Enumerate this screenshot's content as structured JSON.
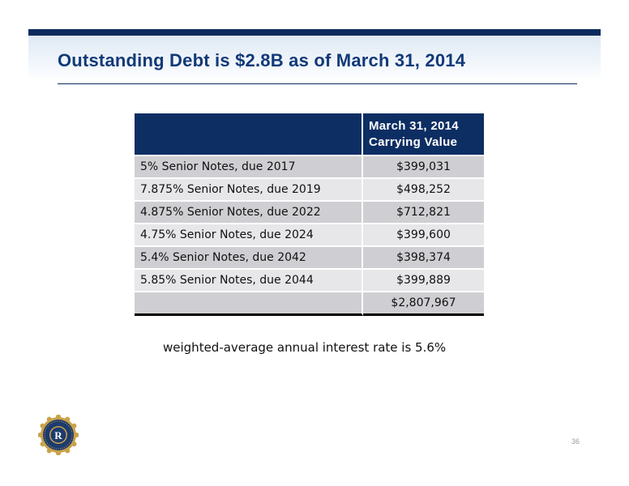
{
  "slide": {
    "title": "Outstanding Debt is $2.8B as of March 31, 2014",
    "page_number": "36"
  },
  "table": {
    "header": {
      "line1": "March 31, 2014",
      "line2": "Carrying Value"
    },
    "rows": [
      {
        "description": "5% Senior Notes, due 2017",
        "value": "$399,031"
      },
      {
        "description": "7.875% Senior Notes, due 2019",
        "value": "$498,252"
      },
      {
        "description": "4.875% Senior Notes, due 2022",
        "value": "$712,821"
      },
      {
        "description": "4.75% Senior Notes, due 2024",
        "value": "$399,600"
      },
      {
        "description": "5.4% Senior Notes, due 2042",
        "value": "$398,374"
      },
      {
        "description": "5.85% Senior Notes, due 2044",
        "value": "$399,889"
      }
    ],
    "total": "$2,807,967"
  },
  "footnote": "weighted-average annual interest rate is 5.6%",
  "logo": {
    "letter": "R"
  },
  "colors": {
    "brand_navy": "#0d2e63",
    "title_blue": "#123a78",
    "seal_gold": "#c9a24a"
  }
}
